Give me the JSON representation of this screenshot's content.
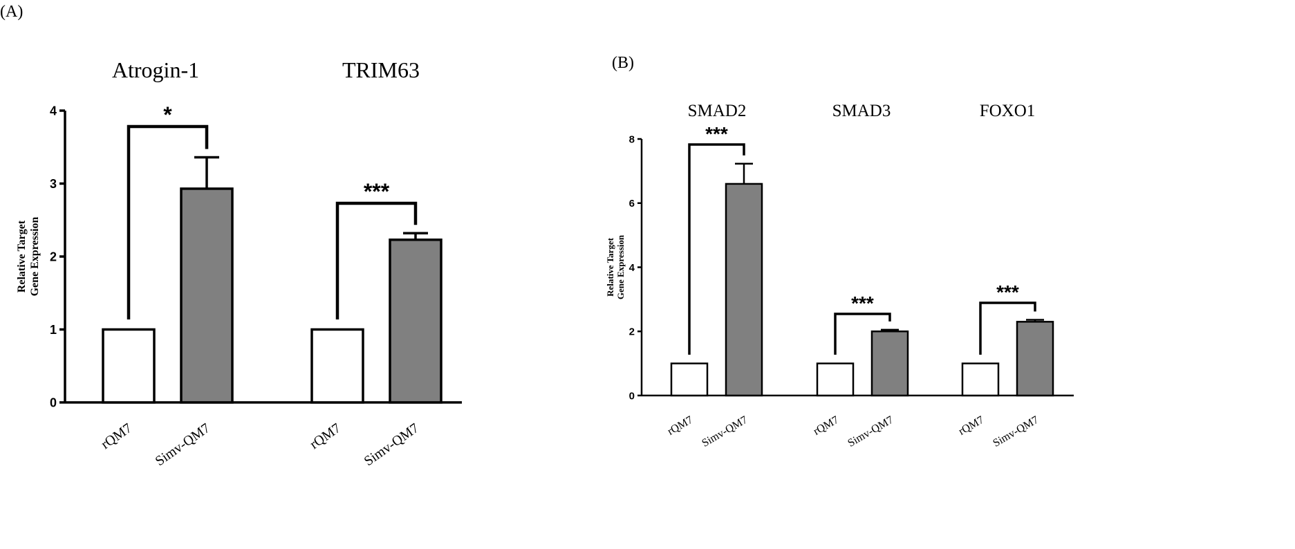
{
  "panels": [
    {
      "label": "(A)"
    },
    {
      "label": "(B)"
    }
  ],
  "chart_data": [
    {
      "type": "bar",
      "ylabel": "Relative Target Gene Expression",
      "ylim": [
        0,
        4
      ],
      "yticks": [
        "0",
        "1",
        "2",
        "3",
        "4"
      ],
      "groups": [
        {
          "title": "Atrogin-1",
          "categories": [
            "rQM7",
            "Simv-QM7"
          ],
          "values": [
            1.0,
            2.93
          ],
          "errors": [
            0,
            0.43
          ],
          "significance": "*"
        },
        {
          "title": "TRIM63",
          "categories": [
            "rQM7",
            "Simv-QM7"
          ],
          "values": [
            1.0,
            2.23
          ],
          "errors": [
            0,
            0.09
          ],
          "significance": "***"
        }
      ],
      "bar_colors": [
        "#ffffff",
        "#808080"
      ]
    },
    {
      "type": "bar",
      "ylabel": "Relative Target Gene Expression",
      "ylim": [
        0,
        8
      ],
      "yticks": [
        "0",
        "2",
        "4",
        "6",
        "8"
      ],
      "groups": [
        {
          "title": "SMAD2",
          "categories": [
            "rQM7",
            "Simv-QM7"
          ],
          "values": [
            1.0,
            6.6
          ],
          "errors": [
            0,
            0.63
          ],
          "significance": "***"
        },
        {
          "title": "SMAD3",
          "categories": [
            "rQM7",
            "Simv-QM7"
          ],
          "values": [
            1.0,
            2.0
          ],
          "errors": [
            0,
            0.05
          ],
          "significance": "***"
        },
        {
          "title": "FOXO1",
          "categories": [
            "rQM7",
            "Simv-QM7"
          ],
          "values": [
            1.0,
            2.3
          ],
          "errors": [
            0,
            0.06
          ],
          "significance": "***"
        }
      ],
      "bar_colors": [
        "#ffffff",
        "#808080"
      ]
    }
  ]
}
